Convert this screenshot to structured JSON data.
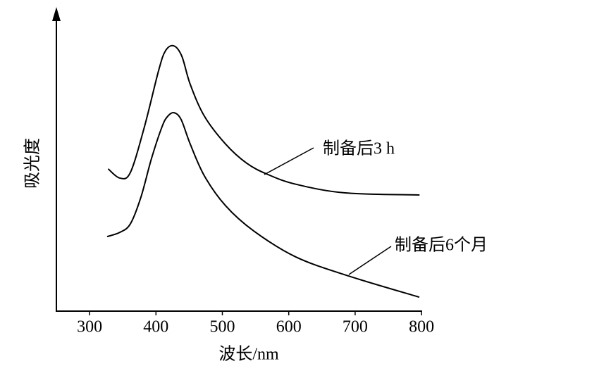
{
  "chart_data": {
    "type": "line",
    "x_label": "波长/nm",
    "y_label": "吸光度",
    "xlim": [
      250,
      800
    ],
    "xticks": [
      300,
      400,
      500,
      600,
      700,
      800
    ],
    "ylim": [
      0,
      100
    ],
    "series": [
      {
        "name": "制备后3 h",
        "color": "#000000",
        "x": [
          328,
          345.5,
          361.5,
          382.7,
          404,
          414.5,
          427,
          439,
          451.7,
          473,
          505,
          536.6,
          568.5,
          611,
          685,
          797
        ],
        "values": [
          47.9,
          44.8,
          46.7,
          62.1,
          81,
          87.7,
          89.3,
          85.8,
          76.3,
          65.6,
          56.2,
          49.8,
          46,
          42.7,
          39.8,
          39.1
        ]
      },
      {
        "name": "制备后6个月",
        "color": "#000000",
        "x": [
          326.4,
          345.5,
          361.5,
          377.4,
          393.3,
          409.2,
          417.7,
          427.3,
          437.9,
          451.7,
          473,
          504.8,
          547.2,
          611,
          690.6,
          796.7
        ],
        "values": [
          25.1,
          26.5,
          29.4,
          38.4,
          51.4,
          62.1,
          65.6,
          66.8,
          64.5,
          56.2,
          45.5,
          35.5,
          27,
          18.2,
          11.8,
          4.7
        ]
      }
    ]
  }
}
